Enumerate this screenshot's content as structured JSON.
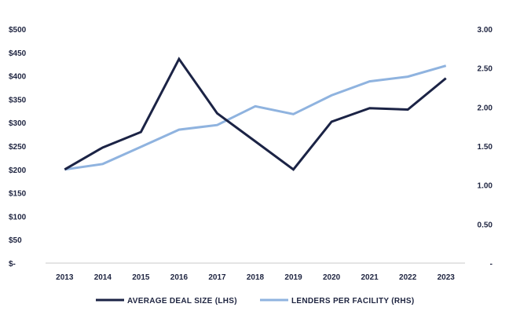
{
  "chart_data": {
    "type": "line",
    "title": "",
    "xlabel": "",
    "ylabel": "",
    "categories": [
      "2013",
      "2014",
      "2015",
      "2016",
      "2017",
      "2018",
      "2019",
      "2020",
      "2021",
      "2022",
      "2023"
    ],
    "y_left": {
      "range": [
        0,
        500
      ],
      "ticks": [
        0,
        50,
        100,
        150,
        200,
        250,
        300,
        350,
        400,
        450,
        500
      ],
      "tick_labels": [
        "$-",
        "$50",
        "$100",
        "$150",
        "$200",
        "$250",
        "$300",
        "$350",
        "$400",
        "$450",
        "$500"
      ]
    },
    "y_right": {
      "range": [
        0,
        3
      ],
      "ticks": [
        0,
        0.5,
        1,
        1.5,
        2,
        2.5,
        3
      ],
      "tick_labels": [
        "-",
        "0.50",
        "1.00",
        "1.50",
        "2.00",
        "2.50",
        "3.00"
      ]
    },
    "series": [
      {
        "name": "AVERAGE DEAL SIZE (LHS)",
        "axis": "left",
        "color": "#1b2345",
        "values": [
          200,
          247,
          280,
          436,
          320,
          260,
          200,
          302,
          331,
          328,
          395
        ]
      },
      {
        "name": "LENDERS PER FACILITY (RHS)",
        "axis": "right",
        "color": "#8fb3df",
        "values": [
          1.2,
          1.27,
          1.49,
          1.71,
          1.77,
          2.01,
          1.91,
          2.15,
          2.33,
          2.39,
          2.53
        ]
      }
    ],
    "grid": false,
    "legend": "bottom"
  }
}
